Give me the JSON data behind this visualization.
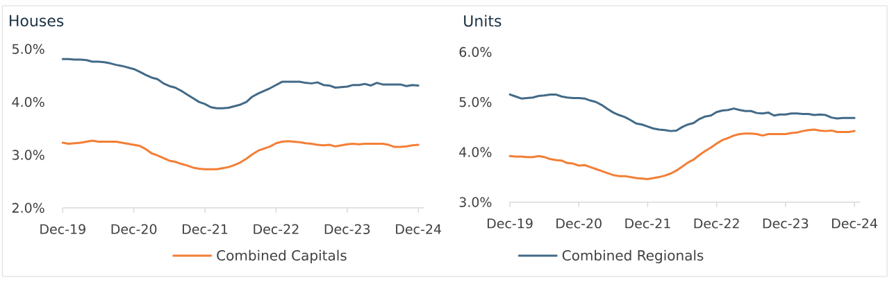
{
  "chart_data": [
    {
      "type": "line",
      "title": "Houses",
      "x": [
        "2019-12",
        "2020-01",
        "2020-02",
        "2020-03",
        "2020-04",
        "2020-05",
        "2020-06",
        "2020-07",
        "2020-08",
        "2020-09",
        "2020-10",
        "2020-11",
        "2020-12",
        "2021-01",
        "2021-02",
        "2021-03",
        "2021-04",
        "2021-05",
        "2021-06",
        "2021-07",
        "2021-08",
        "2021-09",
        "2021-10",
        "2021-11",
        "2021-12",
        "2022-01",
        "2022-02",
        "2022-03",
        "2022-04",
        "2022-05",
        "2022-06",
        "2022-07",
        "2022-08",
        "2022-09",
        "2022-10",
        "2022-11",
        "2022-12",
        "2023-01",
        "2023-02",
        "2023-03",
        "2023-04",
        "2023-05",
        "2023-06",
        "2023-07",
        "2023-08",
        "2023-09",
        "2023-10",
        "2023-11",
        "2023-12",
        "2024-01",
        "2024-02",
        "2024-03",
        "2024-04",
        "2024-05",
        "2024-06",
        "2024-07",
        "2024-08",
        "2024-09",
        "2024-10",
        "2024-11",
        "2024-12"
      ],
      "series": [
        {
          "name": "Combined Capitals",
          "color": "#f37e35",
          "values": [
            3.23,
            3.21,
            3.22,
            3.23,
            3.25,
            3.27,
            3.25,
            3.25,
            3.25,
            3.25,
            3.23,
            3.21,
            3.19,
            3.17,
            3.11,
            3.03,
            2.99,
            2.94,
            2.89,
            2.87,
            2.83,
            2.8,
            2.76,
            2.74,
            2.73,
            2.73,
            2.73,
            2.75,
            2.77,
            2.81,
            2.86,
            2.93,
            3.01,
            3.08,
            3.12,
            3.16,
            3.22,
            3.25,
            3.26,
            3.25,
            3.24,
            3.22,
            3.21,
            3.19,
            3.18,
            3.19,
            3.16,
            3.18,
            3.2,
            3.21,
            3.2,
            3.21,
            3.21,
            3.21,
            3.21,
            3.19,
            3.15,
            3.15,
            3.16,
            3.18,
            3.19
          ]
        },
        {
          "name": "Combined Regionals",
          "color": "#426a87",
          "values": [
            4.81,
            4.81,
            4.8,
            4.8,
            4.79,
            4.76,
            4.76,
            4.75,
            4.73,
            4.7,
            4.68,
            4.65,
            4.62,
            4.57,
            4.51,
            4.46,
            4.43,
            4.35,
            4.3,
            4.27,
            4.21,
            4.14,
            4.07,
            4.0,
            3.96,
            3.9,
            3.88,
            3.88,
            3.89,
            3.92,
            3.95,
            4.0,
            4.1,
            4.16,
            4.21,
            4.26,
            4.32,
            4.38,
            4.38,
            4.38,
            4.38,
            4.36,
            4.35,
            4.37,
            4.32,
            4.31,
            4.27,
            4.28,
            4.29,
            4.32,
            4.32,
            4.34,
            4.31,
            4.36,
            4.33,
            4.33,
            4.33,
            4.33,
            4.3,
            4.32,
            4.31
          ]
        }
      ],
      "xlim": [
        "2019-12",
        "2025-01"
      ],
      "xticks": [
        {
          "value": "2019-12",
          "label": "Dec-19"
        },
        {
          "value": "2020-12",
          "label": "Dec-20"
        },
        {
          "value": "2021-12",
          "label": "Dec-21"
        },
        {
          "value": "2022-12",
          "label": "Dec-22"
        },
        {
          "value": "2023-12",
          "label": "Dec-23"
        },
        {
          "value": "2024-12",
          "label": "Dec-24"
        }
      ],
      "ylim": [
        2,
        5
      ],
      "yticks": [
        {
          "value": 2,
          "label": "2.0%"
        },
        {
          "value": 3,
          "label": "3.0%"
        },
        {
          "value": 4,
          "label": "4.0%"
        },
        {
          "value": 5,
          "label": "5.0%"
        }
      ],
      "legend": "bottom"
    },
    {
      "type": "line",
      "title": "Units",
      "x": [
        "2019-12",
        "2020-01",
        "2020-02",
        "2020-03",
        "2020-04",
        "2020-05",
        "2020-06",
        "2020-07",
        "2020-08",
        "2020-09",
        "2020-10",
        "2020-11",
        "2020-12",
        "2021-01",
        "2021-02",
        "2021-03",
        "2021-04",
        "2021-05",
        "2021-06",
        "2021-07",
        "2021-08",
        "2021-09",
        "2021-10",
        "2021-11",
        "2021-12",
        "2022-01",
        "2022-02",
        "2022-03",
        "2022-04",
        "2022-05",
        "2022-06",
        "2022-07",
        "2022-08",
        "2022-09",
        "2022-10",
        "2022-11",
        "2022-12",
        "2023-01",
        "2023-02",
        "2023-03",
        "2023-04",
        "2023-05",
        "2023-06",
        "2023-07",
        "2023-08",
        "2023-09",
        "2023-10",
        "2023-11",
        "2023-12",
        "2024-01",
        "2024-02",
        "2024-03",
        "2024-04",
        "2024-05",
        "2024-06",
        "2024-07",
        "2024-08",
        "2024-09",
        "2024-10",
        "2024-11",
        "2024-12"
      ],
      "series": [
        {
          "color": "#f37e35",
          "values": [
            3.92,
            3.91,
            3.91,
            3.9,
            3.9,
            3.92,
            3.9,
            3.86,
            3.84,
            3.83,
            3.78,
            3.77,
            3.73,
            3.74,
            3.7,
            3.66,
            3.62,
            3.58,
            3.54,
            3.52,
            3.52,
            3.5,
            3.48,
            3.47,
            3.46,
            3.48,
            3.5,
            3.53,
            3.57,
            3.63,
            3.71,
            3.79,
            3.85,
            3.94,
            4.02,
            4.09,
            4.17,
            4.24,
            4.28,
            4.33,
            4.36,
            4.37,
            4.37,
            4.36,
            4.33,
            4.36,
            4.36,
            4.36,
            4.36,
            4.38,
            4.39,
            4.42,
            4.44,
            4.45,
            4.43,
            4.42,
            4.43,
            4.4,
            4.4,
            4.4,
            4.42
          ]
        },
        {
          "color": "#426a87",
          "values": [
            5.15,
            5.11,
            5.07,
            5.08,
            5.09,
            5.12,
            5.13,
            5.15,
            5.15,
            5.11,
            5.09,
            5.08,
            5.08,
            5.07,
            5.03,
            5.0,
            4.94,
            4.86,
            4.79,
            4.74,
            4.7,
            4.64,
            4.57,
            4.55,
            4.51,
            4.47,
            4.45,
            4.44,
            4.42,
            4.43,
            4.5,
            4.55,
            4.58,
            4.66,
            4.71,
            4.73,
            4.8,
            4.83,
            4.84,
            4.87,
            4.84,
            4.82,
            4.82,
            4.78,
            4.77,
            4.79,
            4.73,
            4.75,
            4.75,
            4.77,
            4.77,
            4.76,
            4.76,
            4.74,
            4.75,
            4.74,
            4.69,
            4.67,
            4.68,
            4.68,
            4.68
          ]
        }
      ],
      "xlim": [
        "2019-12",
        "2025-01"
      ],
      "xticks": [
        {
          "value": "2019-12",
          "label": "Dec-19"
        },
        {
          "value": "2020-12",
          "label": "Dec-20"
        },
        {
          "value": "2021-12",
          "label": "Dec-21"
        },
        {
          "value": "2022-12",
          "label": "Dec-22"
        },
        {
          "value": "2023-12",
          "label": "Dec-23"
        },
        {
          "value": "2024-12",
          "label": "Dec-24"
        }
      ],
      "ylim": [
        3,
        6
      ],
      "yticks": [
        {
          "value": 3,
          "label": "3.0%"
        },
        {
          "value": 4,
          "label": "4.0%"
        },
        {
          "value": 5,
          "label": "5.0%"
        },
        {
          "value": 6,
          "label": "6.0%"
        }
      ]
    }
  ]
}
